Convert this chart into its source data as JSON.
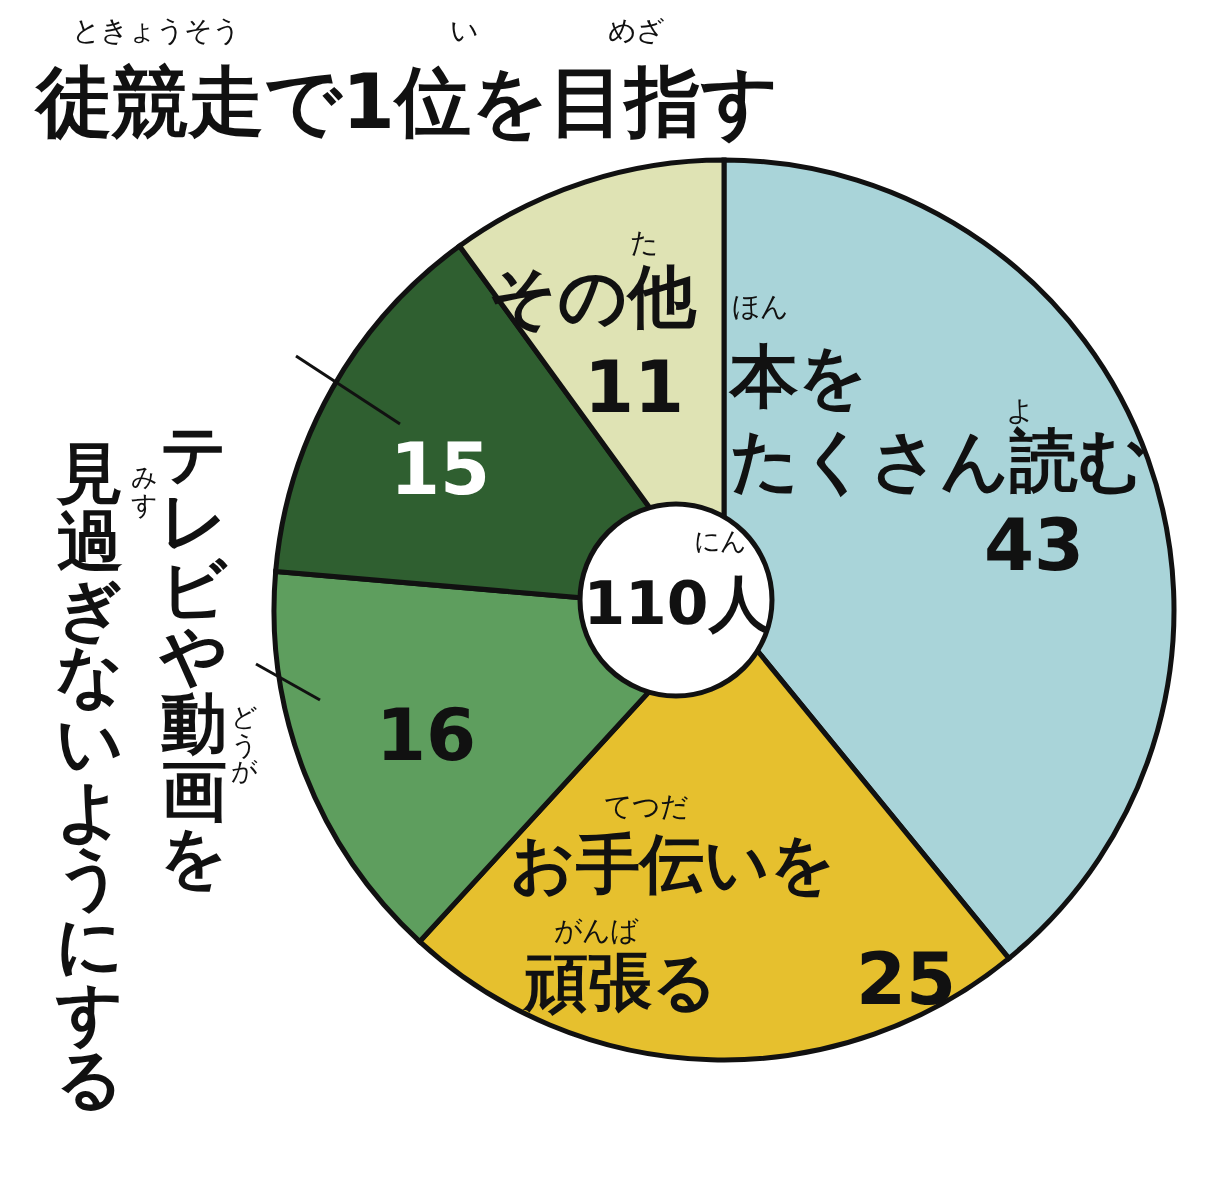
{
  "chart_data": {
    "type": "pie",
    "categories": [
      "本をたくさん読む",
      "お手伝いを頑張る",
      "テレビや動画を見過ぎないようにする",
      "徒競走で1位を目指す",
      "その他"
    ],
    "values": [
      43,
      25,
      16,
      15,
      11
    ],
    "colors": [
      "#a9d4d9",
      "#e6c02e",
      "#5e9e5e",
      "#2f5f30",
      "#dfe3b4"
    ],
    "data_labels": true,
    "annotations": [
      "110人",
      "ときょうそう",
      "い",
      "めざ",
      "た",
      "ほん",
      "よ",
      "にん",
      "てつだ",
      "がんば",
      "どうが",
      "みす"
    ]
  }
}
